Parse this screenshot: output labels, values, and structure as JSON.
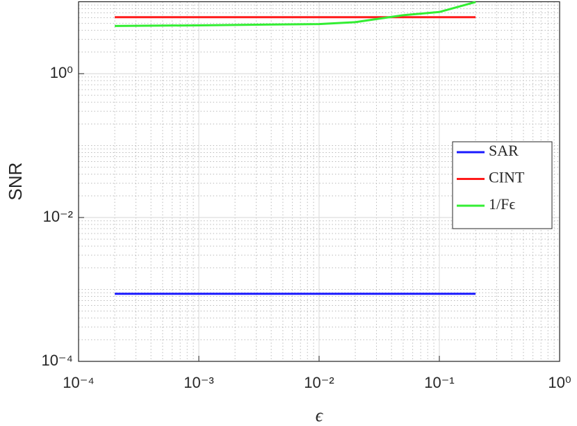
{
  "chart_data": {
    "type": "line",
    "xlabel": "ϵ",
    "ylabel": "SNR",
    "x": [
      0.0002,
      0.001,
      0.01,
      0.02,
      0.05,
      0.1,
      0.2
    ],
    "series": [
      {
        "name": "SAR",
        "color": "#1a1aff",
        "values": [
          0.00087,
          0.00087,
          0.00087,
          0.00087,
          0.00087,
          0.00087,
          0.00087
        ]
      },
      {
        "name": "CINT",
        "color": "#ff1a1a",
        "values": [
          6.1,
          6.1,
          6.1,
          6.1,
          6.1,
          6.1,
          6.1
        ]
      },
      {
        "name": "1/Fϵ",
        "color": "#33ee33",
        "values": [
          4.6,
          4.7,
          4.9,
          5.2,
          6.5,
          7.2,
          9.9
        ]
      }
    ],
    "xlim": [
      0.0001,
      1
    ],
    "ylim": [
      0.0001,
      10
    ],
    "xticks": [
      {
        "value": 0.0001,
        "label": "10⁻⁴"
      },
      {
        "value": 0.001,
        "label": "10⁻³"
      },
      {
        "value": 0.01,
        "label": "10⁻²"
      },
      {
        "value": 0.1,
        "label": "10⁻¹"
      },
      {
        "value": 1,
        "label": "10⁰"
      }
    ],
    "yticks": [
      {
        "value": 0.0001,
        "label": "10⁻⁴"
      },
      {
        "value": 0.01,
        "label": "10⁻²"
      },
      {
        "value": 1,
        "label": "10⁰"
      }
    ],
    "xscale": "log",
    "yscale": "log",
    "grid": true,
    "minor_grid": true,
    "legend": "east"
  }
}
